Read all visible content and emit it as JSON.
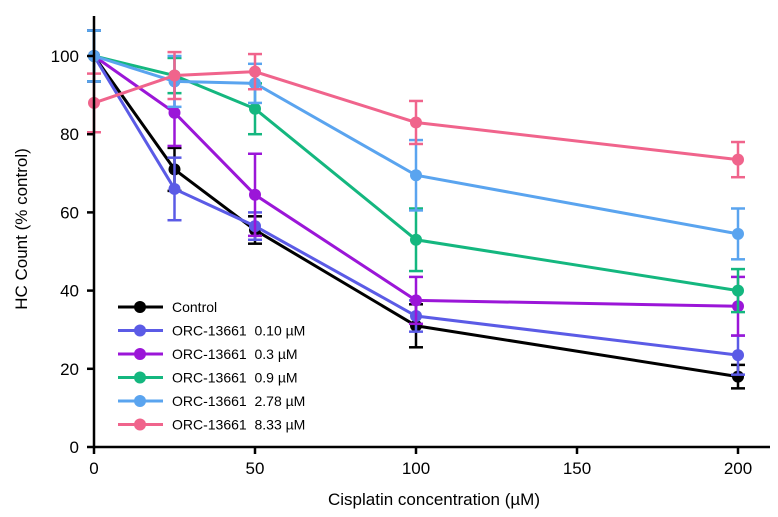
{
  "chart_data": {
    "type": "line",
    "title": "",
    "xlabel": "Cisplatin concentration (µM)",
    "ylabel": "HC Count (% control)",
    "xlim": [
      0,
      212
    ],
    "ylim": [
      0,
      110
    ],
    "x_ticks": [
      0,
      50,
      100,
      150,
      200
    ],
    "y_ticks": [
      0,
      20,
      40,
      60,
      80,
      100
    ],
    "x_tick_labels": [
      "0",
      "50",
      "100",
      "150",
      "200"
    ],
    "y_tick_labels": [
      "0",
      "20",
      "40",
      "60",
      "80",
      "100"
    ],
    "grid": false,
    "legend_position": "bottom-left",
    "series": [
      {
        "name": "Control",
        "color": "#000000",
        "x": [
          0,
          25,
          50,
          100,
          200
        ],
        "y": [
          100,
          71,
          55.5,
          31,
          18
        ],
        "err": [
          6.5,
          5.5,
          3.5,
          5.5,
          3
        ]
      },
      {
        "name": "ORC-13661  0.10 µM",
        "color": "#5b5be6",
        "x": [
          0,
          25,
          50,
          100,
          200
        ],
        "y": [
          100,
          66,
          56.5,
          33.5,
          23.5
        ],
        "err": [
          6.5,
          8,
          3.5,
          4,
          5
        ]
      },
      {
        "name": "ORC-13661  0.3 µM",
        "color": "#9b16d8",
        "x": [
          0,
          25,
          50,
          100,
          200
        ],
        "y": [
          100,
          85.5,
          64.5,
          37.5,
          36
        ],
        "err": [
          6.5,
          8.5,
          10.5,
          6,
          7.5
        ]
      },
      {
        "name": "ORC-13661  0.9 µM",
        "color": "#14b77f",
        "x": [
          0,
          25,
          50,
          100,
          200
        ],
        "y": [
          100,
          95,
          86.5,
          53,
          40
        ],
        "err": [
          6.5,
          4.5,
          6.5,
          8,
          5.5
        ]
      },
      {
        "name": "ORC-13661  2.78 µM",
        "color": "#5aa4ef",
        "x": [
          0,
          25,
          50,
          100,
          200
        ],
        "y": [
          100,
          93.5,
          93,
          69.5,
          54.5
        ],
        "err": [
          6.5,
          6.5,
          5,
          9,
          6.5
        ]
      },
      {
        "name": "ORC-13661  8.33 µM",
        "color": "#f0648c",
        "x": [
          0,
          25,
          50,
          100,
          200
        ],
        "y": [
          88,
          95,
          96,
          83,
          73.5
        ],
        "err": [
          7.5,
          6,
          4.5,
          5.5,
          4.5
        ]
      }
    ]
  }
}
